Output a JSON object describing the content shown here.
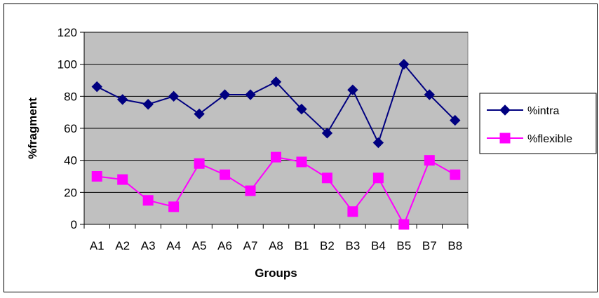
{
  "chart_data": {
    "type": "line",
    "categories": [
      "A1",
      "A2",
      "A3",
      "A4",
      "A5",
      "A6",
      "A7",
      "A8",
      "B1",
      "B2",
      "B3",
      "B4",
      "B5",
      "B7",
      "B8"
    ],
    "series": [
      {
        "name": "%intra",
        "color": "#000080",
        "marker": "diamond",
        "values": [
          86,
          78,
          75,
          80,
          69,
          81,
          81,
          89,
          72,
          57,
          84,
          51,
          100,
          81,
          65
        ]
      },
      {
        "name": "%flexible",
        "color": "#ff00ff",
        "marker": "square",
        "values": [
          30,
          28,
          15,
          11,
          38,
          31,
          21,
          42,
          39,
          29,
          8,
          29,
          0,
          40,
          31
        ]
      }
    ],
    "xlabel": "Groups",
    "ylabel": "%fragment",
    "ylim": [
      0,
      120
    ],
    "yticks": [
      0,
      20,
      40,
      60,
      80,
      100,
      120
    ],
    "grid": true,
    "legend_position": "right",
    "plot_background": "#c0c0c0"
  }
}
